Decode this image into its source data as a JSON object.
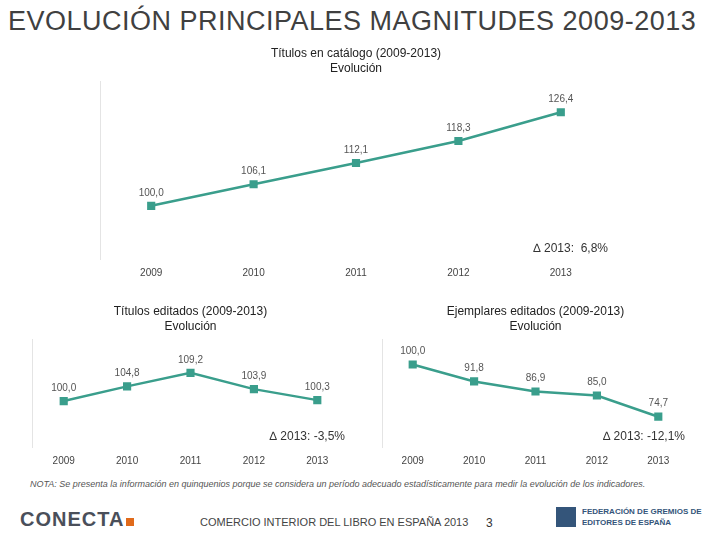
{
  "page": {
    "title": "EVOLUCIÓN PRINCIPALES MAGNITUDES 2009-2013",
    "note": "NOTA: Se presenta la información en quinquenios porque se considera un período adecuado estadísticamente para medir la evolución de los indicadores.",
    "footer": "COMERCIO INTERIOR DEL LIBRO EN ESPAÑA 2013",
    "page_number": "3",
    "logo_left": "CONECTA",
    "logo_right": "FEDERACIÓN DE GREMIOS DE EDITORES DE ESPAÑA"
  },
  "chart_data": [
    {
      "type": "line",
      "title": "Títulos en catálogo (2009-2013)",
      "subtitle": "Evolución",
      "categories": [
        "2009",
        "2010",
        "2011",
        "2012",
        "2013"
      ],
      "values": [
        100.0,
        106.1,
        112.1,
        118.3,
        126.4
      ],
      "value_labels": [
        "100,0",
        "106,1",
        "112,1",
        "118,3",
        "126,4"
      ],
      "annotation": "∆ 2013:  6,8%",
      "color": "#3a9e8c",
      "marker": "square",
      "line_style": "solid",
      "ylim": [
        85,
        135
      ],
      "grid": false,
      "data_labels": true,
      "tick_labels": "x"
    },
    {
      "type": "line",
      "title": "Títulos editados (2009-2013)",
      "subtitle": "Evolución",
      "categories": [
        "2009",
        "2010",
        "2011",
        "2012",
        "2013"
      ],
      "values": [
        100.0,
        104.8,
        109.2,
        103.9,
        100.3
      ],
      "value_labels": [
        "100,0",
        "104,8",
        "109,2",
        "103,9",
        "100,3"
      ],
      "annotation": "∆ 2013: -3,5%",
      "color": "#3a9e8c",
      "marker": "square",
      "line_style": "solid",
      "ylim": [
        85,
        120
      ],
      "grid": false,
      "data_labels": true,
      "tick_labels": "x"
    },
    {
      "type": "line",
      "title": "Ejemplares editados (2009-2013)",
      "subtitle": "Evolución",
      "categories": [
        "2009",
        "2010",
        "2011",
        "2012",
        "2013"
      ],
      "values": [
        100.0,
        91.8,
        86.9,
        85.0,
        74.7
      ],
      "value_labels": [
        "100,0",
        "91,8",
        "86,9",
        "85,0",
        "74,7"
      ],
      "annotation": "∆ 2013: -12,1%",
      "color": "#3a9e8c",
      "marker": "square",
      "line_style": "solid",
      "ylim": [
        60,
        112
      ],
      "grid": false,
      "data_labels": true,
      "tick_labels": "x"
    }
  ]
}
